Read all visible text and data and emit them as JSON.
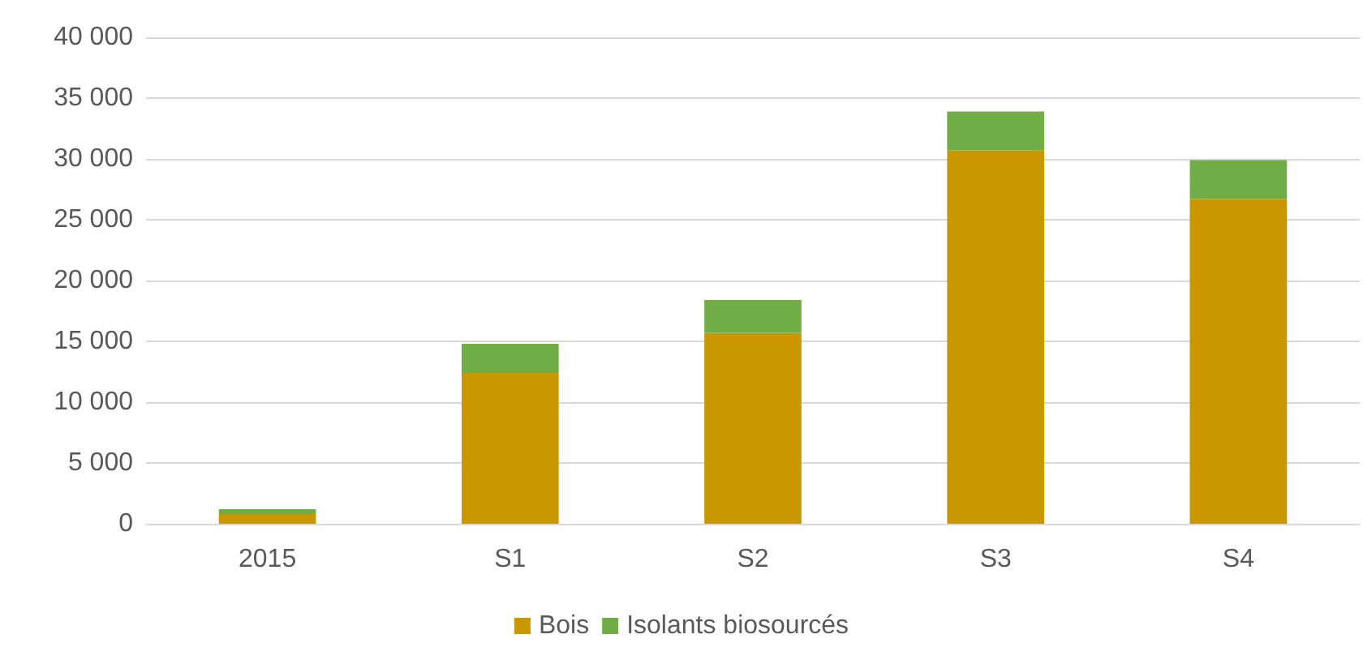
{
  "chart_data": {
    "type": "bar",
    "stacked": true,
    "categories": [
      "2015",
      "S1",
      "S2",
      "S3",
      "S4"
    ],
    "series": [
      {
        "name": "Bois",
        "color": "#c99700",
        "values": [
          800,
          12400,
          15700,
          30700,
          26700
        ]
      },
      {
        "name": "Isolants biosourcés",
        "color": "#70ad47",
        "values": [
          400,
          2400,
          2700,
          3200,
          3200
        ]
      }
    ],
    "ylim": [
      0,
      40000
    ],
    "yticks": [
      {
        "value": 0,
        "label": "0"
      },
      {
        "value": 5000,
        "label": "5 000"
      },
      {
        "value": 10000,
        "label": "10 000"
      },
      {
        "value": 15000,
        "label": "15 000"
      },
      {
        "value": 20000,
        "label": "20 000"
      },
      {
        "value": 25000,
        "label": "25 000"
      },
      {
        "value": 30000,
        "label": "30 000"
      },
      {
        "value": 35000,
        "label": "35 000"
      },
      {
        "value": 40000,
        "label": "40 000"
      }
    ],
    "grid": "y",
    "legend": "bottom"
  }
}
